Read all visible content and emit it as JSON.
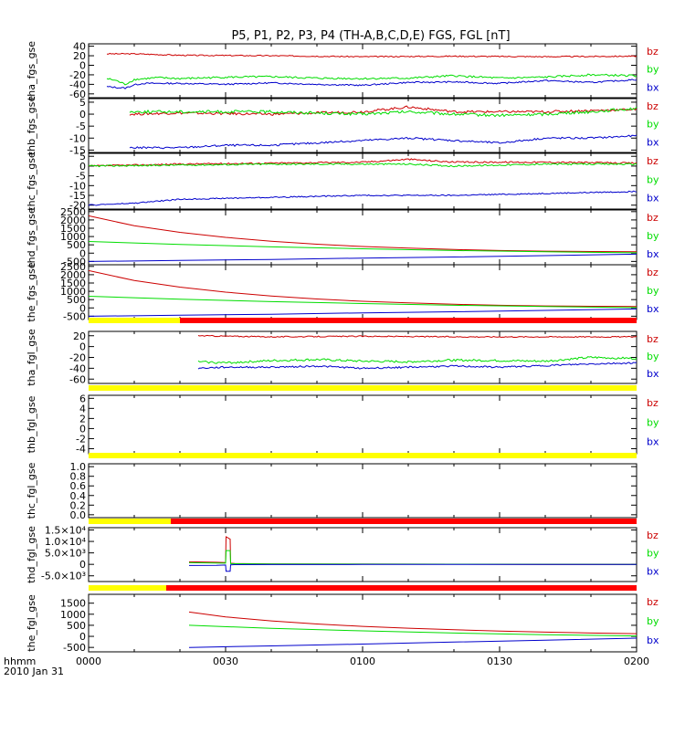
{
  "title": "P5, P1, P2, P3, P4 (TH-A,B,C,D,E) FGS, FGL [nT]",
  "x_axis": {
    "ticks": [
      "0000",
      "0030",
      "0100",
      "0130",
      "0200"
    ],
    "label_line1": "hhmm",
    "label_line2": "2010 Jan 31"
  },
  "colors": {
    "bx": "#0000cc",
    "by": "#00dd00",
    "bz": "#cc0000",
    "bar_yellow": "#ffff00",
    "bar_red": "#ff0000"
  },
  "chart_data": [
    {
      "type": "line",
      "ylabel": "tha_fgs_gse",
      "ylim": [
        -68,
        45
      ],
      "yticks": [
        {
          "v": 40,
          "label": "40"
        },
        {
          "v": 20,
          "label": "20"
        },
        {
          "v": 0,
          "label": "0"
        },
        {
          "v": -20,
          "label": "-20"
        },
        {
          "v": -40,
          "label": "-40"
        },
        {
          "v": -60,
          "label": "-60"
        }
      ],
      "legend": [
        "bz",
        "by",
        "bx"
      ],
      "series": [
        {
          "name": "bz",
          "noise": 1.2,
          "x": [
            4,
            10,
            20,
            40,
            60,
            80,
            100,
            120
          ],
          "y": [
            24,
            24,
            21,
            20,
            18,
            19,
            18,
            19
          ]
        },
        {
          "name": "by",
          "noise": 2.0,
          "x": [
            4,
            6,
            8,
            10,
            15,
            20,
            30,
            40,
            50,
            60,
            70,
            80,
            90,
            100,
            110,
            120
          ],
          "y": [
            -28,
            -32,
            -40,
            -30,
            -26,
            -28,
            -25,
            -24,
            -27,
            -28,
            -27,
            -22,
            -27,
            -25,
            -20,
            -22
          ]
        },
        {
          "name": "bx",
          "noise": 1.5,
          "x": [
            4,
            8,
            10,
            12,
            20,
            30,
            40,
            50,
            60,
            70,
            80,
            90,
            100,
            110,
            120
          ],
          "y": [
            -45,
            -48,
            -41,
            -38,
            -38,
            -40,
            -37,
            -40,
            -42,
            -36,
            -35,
            -38,
            -32,
            -36,
            -30
          ]
        }
      ]
    },
    {
      "type": "line",
      "ylabel": "thb_fgs_gse",
      "ylim": [
        -16,
        6.5
      ],
      "yticks": [
        {
          "v": 5,
          "label": "5"
        },
        {
          "v": 0,
          "label": "0"
        },
        {
          "v": -5,
          "label": "-5"
        },
        {
          "v": -10,
          "label": "-10"
        },
        {
          "v": -15,
          "label": "-15"
        }
      ],
      "legend": [
        "bz",
        "by",
        "bx"
      ],
      "series": [
        {
          "name": "bz",
          "noise": 0.5,
          "x": [
            9,
            20,
            40,
            60,
            70,
            80,
            90,
            100,
            110,
            120
          ],
          "y": [
            0,
            0.5,
            0,
            1,
            3,
            1,
            1,
            1,
            1.5,
            2
          ]
        },
        {
          "name": "by",
          "noise": 0.6,
          "x": [
            9,
            20,
            40,
            60,
            70,
            80,
            90,
            100,
            110,
            120
          ],
          "y": [
            1,
            1,
            1,
            0,
            1,
            0,
            -0.5,
            0,
            1,
            2.5
          ]
        },
        {
          "name": "bx",
          "noise": 0.4,
          "x": [
            9,
            20,
            30,
            40,
            60,
            70,
            80,
            90,
            100,
            110,
            120
          ],
          "y": [
            -14,
            -14,
            -13,
            -13,
            -11,
            -10,
            -11,
            -12,
            -10,
            -10,
            -9
          ]
        }
      ]
    },
    {
      "type": "line",
      "ylabel": "thc_fgs_gse",
      "ylim": [
        -22,
        6.5
      ],
      "yticks": [
        {
          "v": 5,
          "label": "5"
        },
        {
          "v": 0,
          "label": "0"
        },
        {
          "v": -5,
          "label": "-5"
        },
        {
          "v": -10,
          "label": "-10"
        },
        {
          "v": -15,
          "label": "-15"
        },
        {
          "v": -20,
          "label": "-20"
        }
      ],
      "legend": [
        "bz",
        "by",
        "bx"
      ],
      "series": [
        {
          "name": "bz",
          "noise": 0.4,
          "x": [
            0,
            20,
            40,
            60,
            70,
            80,
            100,
            120
          ],
          "y": [
            0,
            1,
            1.5,
            2,
            3.5,
            2,
            2,
            1.5
          ]
        },
        {
          "name": "by",
          "noise": 0.4,
          "x": [
            0,
            20,
            40,
            60,
            70,
            80,
            100,
            120
          ],
          "y": [
            0,
            0.5,
            1,
            1,
            1,
            0,
            1,
            1
          ]
        },
        {
          "name": "bx",
          "noise": 0.3,
          "x": [
            0,
            10,
            20,
            40,
            60,
            80,
            100,
            120
          ],
          "y": [
            -20,
            -19,
            -17,
            -16,
            -15,
            -15,
            -14,
            -13
          ]
        }
      ]
    },
    {
      "type": "line",
      "ylabel": "thd_fgs_gse",
      "ylim": [
        -700,
        2600
      ],
      "yticks": [
        {
          "v": 2500,
          "label": "2500"
        },
        {
          "v": 2000,
          "label": "2000"
        },
        {
          "v": 1500,
          "label": "1500"
        },
        {
          "v": 1000,
          "label": "1000"
        },
        {
          "v": 500,
          "label": "500"
        },
        {
          "v": 0,
          "label": "0"
        },
        {
          "v": -500,
          "label": "-500"
        }
      ],
      "legend": [
        "bz",
        "by",
        "bx"
      ],
      "series": [
        {
          "name": "bz",
          "noise": 0,
          "x": [
            0,
            10,
            20,
            30,
            40,
            50,
            60,
            70,
            80,
            90,
            100,
            110,
            120
          ],
          "y": [
            2250,
            1650,
            1250,
            950,
            720,
            540,
            400,
            300,
            220,
            160,
            120,
            100,
            80
          ]
        },
        {
          "name": "by",
          "noise": 0,
          "x": [
            0,
            20,
            40,
            60,
            80,
            100,
            120
          ],
          "y": [
            700,
            520,
            380,
            260,
            160,
            80,
            20
          ]
        },
        {
          "name": "bx",
          "noise": 0,
          "x": [
            0,
            20,
            40,
            60,
            80,
            100,
            120
          ],
          "y": [
            -500,
            -440,
            -380,
            -300,
            -230,
            -150,
            -60
          ]
        }
      ]
    },
    {
      "type": "line",
      "ylabel": "the_fgs_gse",
      "ylim": [
        -700,
        2600
      ],
      "yticks": [
        {
          "v": 2500,
          "label": "2500"
        },
        {
          "v": 2000,
          "label": "2000"
        },
        {
          "v": 1500,
          "label": "1500"
        },
        {
          "v": 1000,
          "label": "1000"
        },
        {
          "v": 500,
          "label": "500"
        },
        {
          "v": 0,
          "label": "0"
        },
        {
          "v": -500,
          "label": "-500"
        }
      ],
      "legend": [
        "bz",
        "by",
        "bx"
      ],
      "series": [
        {
          "name": "bz",
          "noise": 0,
          "x": [
            0,
            10,
            20,
            30,
            40,
            50,
            60,
            70,
            80,
            90,
            100,
            110,
            120
          ],
          "y": [
            2250,
            1650,
            1250,
            950,
            720,
            540,
            400,
            300,
            220,
            160,
            120,
            100,
            80
          ]
        },
        {
          "name": "by",
          "noise": 0,
          "x": [
            0,
            20,
            40,
            60,
            80,
            100,
            120
          ],
          "y": [
            700,
            520,
            380,
            260,
            160,
            80,
            20
          ]
        },
        {
          "name": "bx",
          "noise": 0,
          "x": [
            0,
            20,
            40,
            60,
            80,
            100,
            120
          ],
          "y": [
            -500,
            -440,
            -380,
            -300,
            -230,
            -150,
            -60
          ]
        }
      ]
    },
    {
      "type": "line",
      "ylabel": "tha_fgl_gse",
      "ylim": [
        -68,
        28
      ],
      "yticks": [
        {
          "v": 20,
          "label": "20"
        },
        {
          "v": 0,
          "label": "0"
        },
        {
          "v": -20,
          "label": "-20"
        },
        {
          "v": -40,
          "label": "-40"
        },
        {
          "v": -60,
          "label": "-60"
        }
      ],
      "legend": [
        "bz",
        "by",
        "bx"
      ],
      "series": [
        {
          "name": "bz",
          "noise": 1.0,
          "x": [
            24,
            40,
            60,
            80,
            100,
            120
          ],
          "y": [
            20,
            18,
            19,
            18,
            18,
            18
          ]
        },
        {
          "name": "by",
          "noise": 2.0,
          "x": [
            24,
            30,
            40,
            50,
            60,
            70,
            80,
            90,
            100,
            110,
            120
          ],
          "y": [
            -28,
            -30,
            -26,
            -24,
            -27,
            -28,
            -25,
            -26,
            -27,
            -20,
            -22
          ]
        },
        {
          "name": "bx",
          "noise": 1.5,
          "x": [
            24,
            30,
            40,
            50,
            60,
            70,
            80,
            90,
            100,
            110,
            120
          ],
          "y": [
            -40,
            -38,
            -38,
            -36,
            -40,
            -38,
            -36,
            -38,
            -35,
            -32,
            -30
          ]
        }
      ]
    },
    {
      "type": "line",
      "ylabel": "thb_fgl_gse",
      "ylim": [
        -5,
        6.6
      ],
      "yticks": [
        {
          "v": 6,
          "label": "6"
        },
        {
          "v": 4,
          "label": "4"
        },
        {
          "v": 2,
          "label": "2"
        },
        {
          "v": 0,
          "label": "0"
        },
        {
          "v": -2,
          "label": "-2"
        },
        {
          "v": -4,
          "label": "-4"
        }
      ],
      "legend": [
        "bz",
        "by",
        "bx"
      ],
      "series": []
    },
    {
      "type": "line",
      "ylabel": "thc_fgl_gse",
      "ylim": [
        -0.06,
        1.06
      ],
      "yticks": [
        {
          "v": 1.0,
          "label": "1.0"
        },
        {
          "v": 0.8,
          "label": "0.8"
        },
        {
          "v": 0.6,
          "label": "0.6"
        },
        {
          "v": 0.4,
          "label": "0.4"
        },
        {
          "v": 0.2,
          "label": "0.2"
        },
        {
          "v": 0.0,
          "label": "0.0"
        }
      ],
      "legend": [],
      "series": []
    },
    {
      "type": "line",
      "ylabel": "thd_fgl_gse",
      "ylim": [
        -7500,
        16000
      ],
      "yticks": [
        {
          "v": 15000,
          "label": "1.5×10⁴"
        },
        {
          "v": 10000,
          "label": "1.0×10⁴"
        },
        {
          "v": 5000,
          "label": "5.0×10³"
        },
        {
          "v": 0,
          "label": "0"
        },
        {
          "v": -5000,
          "label": "-5.0×10³"
        }
      ],
      "legend": [
        "bz",
        "by",
        "bx"
      ],
      "series": [
        {
          "name": "bz",
          "noise": 0,
          "x": [
            22,
            28,
            30,
            30.1,
            31,
            31.1,
            32,
            40,
            60,
            80,
            100,
            120
          ],
          "y": [
            1100,
            900,
            800,
            12000,
            11000,
            500,
            400,
            200,
            100,
            50,
            0,
            0
          ]
        },
        {
          "name": "by",
          "noise": 0,
          "x": [
            22,
            28,
            30,
            30.1,
            31,
            31.1,
            32,
            40,
            60,
            80,
            100,
            120
          ],
          "y": [
            700,
            600,
            500,
            6000,
            6000,
            300,
            250,
            150,
            100,
            50,
            20,
            0
          ]
        },
        {
          "name": "bx",
          "noise": 0,
          "x": [
            22,
            28,
            30,
            30.1,
            31,
            31.1,
            32,
            40,
            60,
            80,
            100,
            120
          ],
          "y": [
            -500,
            -400,
            -300,
            -3000,
            -3000,
            -200,
            -150,
            -100,
            -50,
            -20,
            0,
            0
          ]
        }
      ]
    },
    {
      "type": "line",
      "ylabel": "the_fgl_gse",
      "ylim": [
        -700,
        1900
      ],
      "yticks": [
        {
          "v": 1500,
          "label": "1500"
        },
        {
          "v": 1000,
          "label": "1000"
        },
        {
          "v": 500,
          "label": "500"
        },
        {
          "v": 0,
          "label": "0"
        },
        {
          "v": -500,
          "label": "-500"
        }
      ],
      "legend": [
        "bz",
        "by",
        "bx"
      ],
      "series": [
        {
          "name": "bz",
          "noise": 0,
          "x": [
            22,
            30,
            40,
            50,
            60,
            70,
            80,
            90,
            100,
            110,
            120
          ],
          "y": [
            1100,
            880,
            700,
            560,
            450,
            370,
            300,
            240,
            190,
            150,
            120
          ]
        },
        {
          "name": "by",
          "noise": 0,
          "x": [
            22,
            40,
            60,
            80,
            100,
            120
          ],
          "y": [
            500,
            360,
            250,
            150,
            70,
            20
          ]
        },
        {
          "name": "bx",
          "noise": 0,
          "x": [
            22,
            40,
            60,
            80,
            100,
            120
          ],
          "y": [
            -500,
            -430,
            -350,
            -260,
            -170,
            -80
          ]
        }
      ]
    }
  ],
  "quality_bars": [
    {
      "yellow_end": 20
    },
    {
      "yellow_end": 120
    },
    {
      "yellow_end": 120
    },
    {
      "yellow_end": 18
    },
    {
      "yellow_end": 17
    }
  ]
}
